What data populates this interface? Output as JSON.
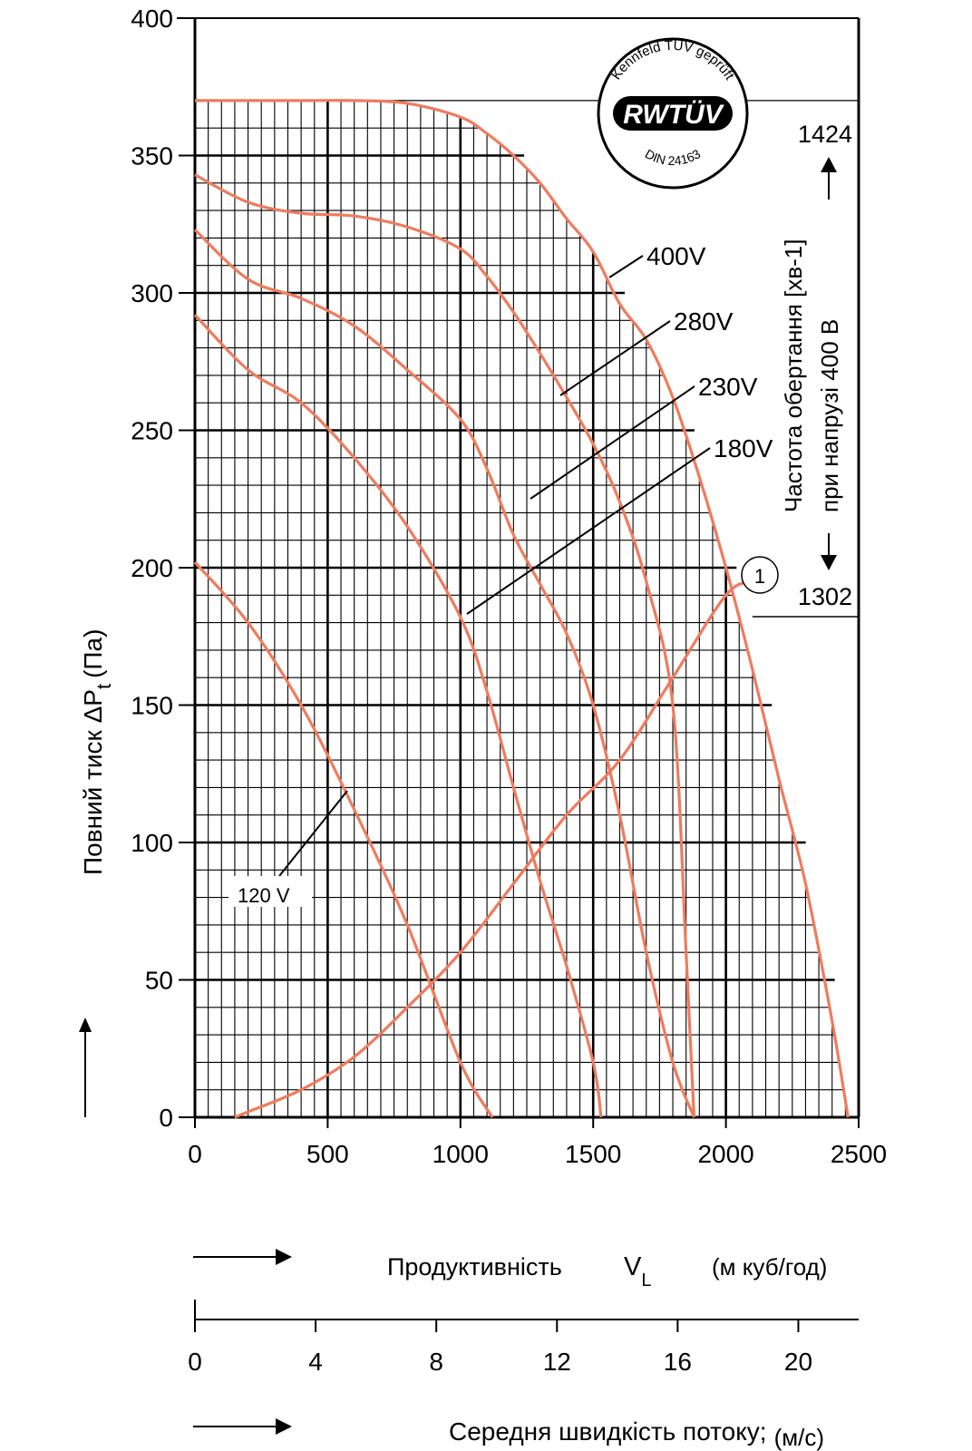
{
  "chart_data": {
    "type": "line",
    "xlabel": "Продуктивність",
    "xsymbol": "V",
    "xsymbol_sub": "L",
    "xunit": "(м куб/год)",
    "ylabel": "Повний тиск ΔP",
    "ylabel_sub": "t",
    "ylabel_unit": "(Па)",
    "xlim": [
      0,
      2500
    ],
    "ylim": [
      0,
      400
    ],
    "x_ticks": [
      0,
      500,
      1000,
      1500,
      2000,
      2500
    ],
    "y_ticks": [
      0,
      50,
      100,
      150,
      200,
      250,
      300,
      350,
      400
    ],
    "grid": true,
    "series": [
      {
        "name": "400V",
        "points": [
          [
            0,
            370
          ],
          [
            200,
            370
          ],
          [
            400,
            370
          ],
          [
            600,
            370
          ],
          [
            800,
            369
          ],
          [
            1000,
            364
          ],
          [
            1100,
            358
          ],
          [
            1200,
            350
          ],
          [
            1300,
            340
          ],
          [
            1400,
            327
          ],
          [
            1500,
            315
          ],
          [
            1600,
            296
          ],
          [
            1700,
            283
          ],
          [
            1800,
            262
          ],
          [
            1900,
            233
          ],
          [
            2000,
            200
          ],
          [
            2100,
            163
          ],
          [
            2200,
            123
          ],
          [
            2300,
            85
          ],
          [
            2400,
            35
          ],
          [
            2460,
            0
          ]
        ]
      },
      {
        "name": "280V",
        "points": [
          [
            0,
            343
          ],
          [
            200,
            333
          ],
          [
            400,
            329
          ],
          [
            600,
            328
          ],
          [
            800,
            324
          ],
          [
            1000,
            316
          ],
          [
            1100,
            306
          ],
          [
            1200,
            293
          ],
          [
            1300,
            278
          ],
          [
            1400,
            262
          ],
          [
            1500,
            245
          ],
          [
            1600,
            224
          ],
          [
            1700,
            195
          ],
          [
            1800,
            150
          ],
          [
            1850,
            60
          ],
          [
            1880,
            0
          ]
        ]
      },
      {
        "name": "230V",
        "points": [
          [
            0,
            323
          ],
          [
            200,
            305
          ],
          [
            400,
            298
          ],
          [
            600,
            288
          ],
          [
            800,
            272
          ],
          [
            1000,
            254
          ],
          [
            1100,
            236
          ],
          [
            1200,
            212
          ],
          [
            1300,
            194
          ],
          [
            1400,
            176
          ],
          [
            1500,
            150
          ],
          [
            1600,
            110
          ],
          [
            1700,
            60
          ],
          [
            1800,
            20
          ],
          [
            1880,
            0
          ]
        ]
      },
      {
        "name": "180V",
        "points": [
          [
            0,
            292
          ],
          [
            200,
            272
          ],
          [
            400,
            260
          ],
          [
            600,
            240
          ],
          [
            800,
            215
          ],
          [
            1000,
            182
          ],
          [
            1100,
            155
          ],
          [
            1200,
            120
          ],
          [
            1300,
            86
          ],
          [
            1400,
            55
          ],
          [
            1500,
            20
          ],
          [
            1530,
            0
          ]
        ]
      },
      {
        "name": "120 V",
        "points": [
          [
            0,
            202
          ],
          [
            200,
            180
          ],
          [
            400,
            150
          ],
          [
            600,
            112
          ],
          [
            800,
            70
          ],
          [
            1000,
            20
          ],
          [
            1120,
            0
          ]
        ]
      },
      {
        "name": "1",
        "points": [
          [
            150,
            0
          ],
          [
            200,
            2
          ],
          [
            400,
            10
          ],
          [
            600,
            22
          ],
          [
            800,
            40
          ],
          [
            1000,
            60
          ],
          [
            1200,
            85
          ],
          [
            1400,
            110
          ],
          [
            1600,
            130
          ],
          [
            1800,
            160
          ],
          [
            2000,
            190
          ],
          [
            2100,
            195
          ]
        ]
      }
    ],
    "annotations": {
      "speed_top": "1424",
      "speed_bottom": "1302",
      "speed_label_1": "Частота  обертання [хв-1]",
      "speed_label_2": "при напрузі 400 В",
      "system_marker": "1"
    },
    "secondary_axis": {
      "label": "Середня швидкість потоку;",
      "unit": "(м/с)",
      "ticks": [
        "0",
        "4",
        "8",
        "12",
        "16",
        "20"
      ],
      "xlim": [
        0,
        22
      ]
    },
    "colors": {
      "curve": "#ef7b5e",
      "grid": "#000000",
      "text": "#000000"
    }
  },
  "badge": {
    "brand": "RWTÜV",
    "ring_text": "Kennfeld TÜV geprüft",
    "standard": "DIN 24163"
  }
}
